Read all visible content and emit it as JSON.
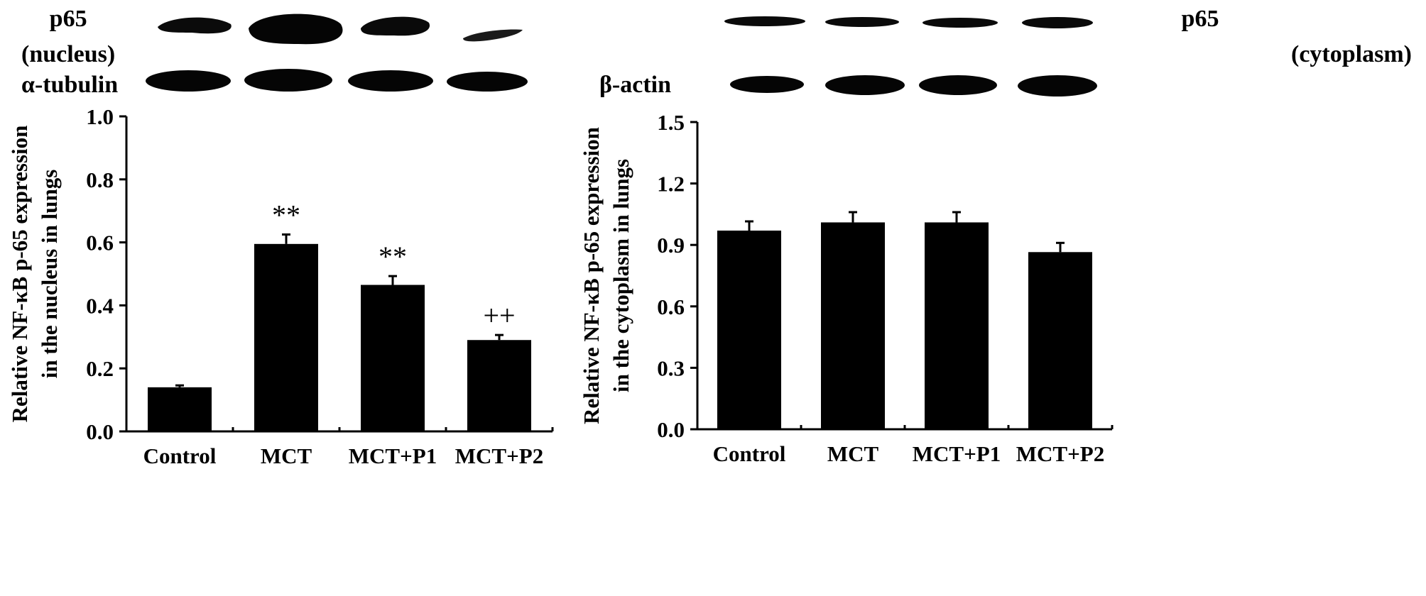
{
  "chart_data": [
    {
      "type": "bar",
      "blots": [
        {
          "label_lines": [
            "p65",
            "(nucleus)"
          ]
        },
        {
          "label_lines": [
            "α-tubulin"
          ]
        }
      ],
      "categories": [
        "Control",
        "MCT",
        "MCT+P1",
        "MCT+P2"
      ],
      "values": [
        0.14,
        0.595,
        0.465,
        0.29
      ],
      "errors": [
        0.006,
        0.03,
        0.028,
        0.016
      ],
      "annotations": [
        "",
        "**",
        "**",
        "++"
      ],
      "ylabel_lines": [
        "Relative NF-κB p-65 expression",
        "in the nucleus in lungs"
      ],
      "ylim": [
        0.0,
        1.0
      ],
      "yticks": [
        "0.0",
        "0.2",
        "0.4",
        "0.6",
        "0.8",
        "1.0"
      ],
      "bar_color": "#000000"
    },
    {
      "type": "bar",
      "blots": [
        {
          "label_lines": [
            "p65",
            "(cytoplasm)"
          ]
        },
        {
          "label_lines": [
            "β-actin"
          ]
        }
      ],
      "categories": [
        "Control",
        "MCT",
        "MCT+P1",
        "MCT+P2"
      ],
      "values": [
        0.97,
        1.01,
        1.01,
        0.865
      ],
      "errors": [
        0.045,
        0.05,
        0.05,
        0.045
      ],
      "annotations": [
        "",
        "",
        "",
        ""
      ],
      "ylabel_lines": [
        "Relative NF-κB p-65 expression",
        "in the cytoplasm in lungs"
      ],
      "ylim": [
        0.0,
        1.5
      ],
      "yticks": [
        "0.0",
        "0.3",
        "0.6",
        "0.9",
        "1.2",
        "1.5"
      ],
      "bar_color": "#000000"
    }
  ]
}
